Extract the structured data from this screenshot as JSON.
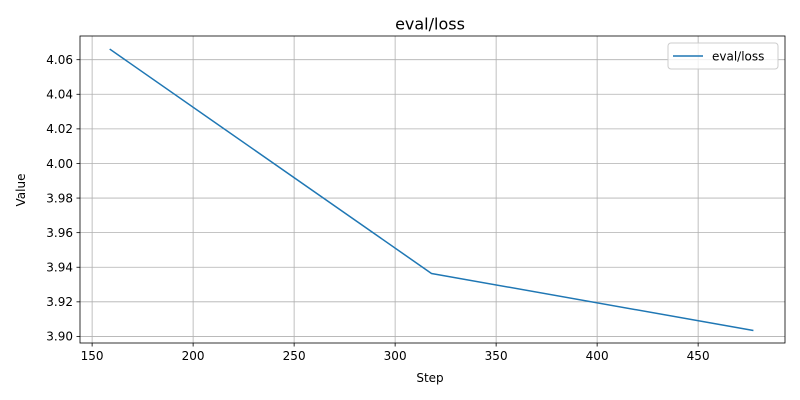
{
  "chart_data": {
    "type": "line",
    "title": "eval/loss",
    "xlabel": "Step",
    "ylabel": "Value",
    "xlim": [
      144,
      493
    ],
    "ylim": [
      3.8962,
      4.0737
    ],
    "xticks": [
      150,
      200,
      250,
      300,
      350,
      400,
      450
    ],
    "yticks": [
      3.9,
      3.92,
      3.94,
      3.96,
      3.98,
      4.0,
      4.02,
      4.04,
      4.06
    ],
    "grid": true,
    "legend": "top-right",
    "series": [
      {
        "name": "eval/loss",
        "color": "#1f77b4",
        "x": [
          159,
          318,
          477
        ],
        "y": [
          4.0659,
          3.9364,
          3.9035
        ]
      }
    ]
  }
}
